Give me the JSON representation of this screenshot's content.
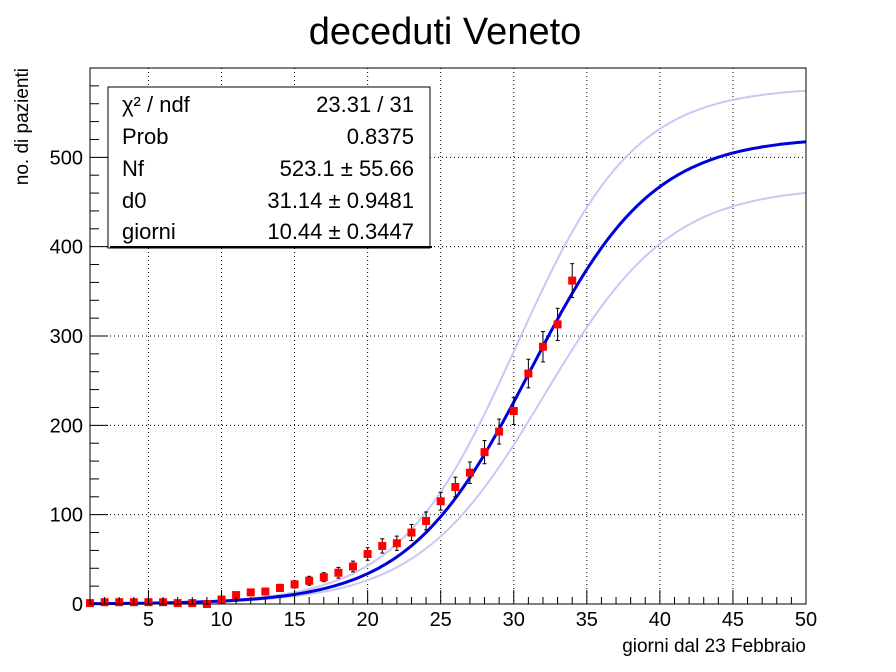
{
  "chart_data": {
    "type": "scatter",
    "title": "deceduti Veneto",
    "xlabel": "giorni dal 23 Febbraio",
    "ylabel": "no. di pazienti",
    "xlim": [
      1,
      50
    ],
    "ylim": [
      0,
      600
    ],
    "x_ticks": [
      5,
      10,
      15,
      20,
      25,
      30,
      35,
      40,
      45,
      50
    ],
    "y_ticks": [
      0,
      100,
      200,
      300,
      400,
      500
    ],
    "grid": true,
    "colors": {
      "data": "#ff0000",
      "fit": "#0000dd",
      "band": "#c8c8f5",
      "errorbar": "#000000"
    },
    "stats_box": {
      "position": "top-left",
      "rows": [
        {
          "label": "χ² / ndf",
          "value": "23.31 / 31"
        },
        {
          "label": "Prob",
          "value": "0.8375"
        },
        {
          "label": "Nf",
          "value": "523.1 ± 55.66"
        },
        {
          "label": "d0",
          "value": "31.14 ± 0.9481"
        },
        {
          "label": "giorni",
          "value": "10.44 ± 0.3447"
        }
      ]
    },
    "fit": {
      "Nf": 523.1,
      "d0": 31.14,
      "giorni": 10.44,
      "Nf_err": 55.66,
      "d0_err": 0.9481,
      "giorni_err": 0.3447
    },
    "series": [
      {
        "points": [
          {
            "x": 1,
            "y": 1,
            "err": 1
          },
          {
            "x": 2,
            "y": 2,
            "err": 1
          },
          {
            "x": 3,
            "y": 2,
            "err": 1
          },
          {
            "x": 4,
            "y": 2,
            "err": 1
          },
          {
            "x": 5,
            "y": 2,
            "err": 1
          },
          {
            "x": 6,
            "y": 2,
            "err": 1
          },
          {
            "x": 7,
            "y": 1,
            "err": 1
          },
          {
            "x": 8,
            "y": 1,
            "err": 1
          },
          {
            "x": 9,
            "y": 0,
            "err": 1
          },
          {
            "x": 10,
            "y": 5,
            "err": 2
          },
          {
            "x": 11,
            "y": 10,
            "err": 3
          },
          {
            "x": 12,
            "y": 13,
            "err": 3
          },
          {
            "x": 13,
            "y": 14,
            "err": 3
          },
          {
            "x": 14,
            "y": 18,
            "err": 4
          },
          {
            "x": 15,
            "y": 22,
            "err": 4
          },
          {
            "x": 16,
            "y": 26,
            "err": 5
          },
          {
            "x": 17,
            "y": 30,
            "err": 5
          },
          {
            "x": 18,
            "y": 35,
            "err": 6
          },
          {
            "x": 19,
            "y": 42,
            "err": 6
          },
          {
            "x": 20,
            "y": 56,
            "err": 7
          },
          {
            "x": 21,
            "y": 65,
            "err": 8
          },
          {
            "x": 22,
            "y": 68,
            "err": 8
          },
          {
            "x": 23,
            "y": 80,
            "err": 9
          },
          {
            "x": 24,
            "y": 93,
            "err": 10
          },
          {
            "x": 25,
            "y": 115,
            "err": 10
          },
          {
            "x": 26,
            "y": 131,
            "err": 11
          },
          {
            "x": 27,
            "y": 147,
            "err": 12
          },
          {
            "x": 28,
            "y": 170,
            "err": 13
          },
          {
            "x": 29,
            "y": 193,
            "err": 14
          },
          {
            "x": 30,
            "y": 216,
            "err": 15
          },
          {
            "x": 31,
            "y": 258,
            "err": 16
          },
          {
            "x": 32,
            "y": 288,
            "err": 17
          },
          {
            "x": 33,
            "y": 313,
            "err": 18
          },
          {
            "x": 34,
            "y": 362,
            "err": 19
          }
        ]
      }
    ]
  }
}
